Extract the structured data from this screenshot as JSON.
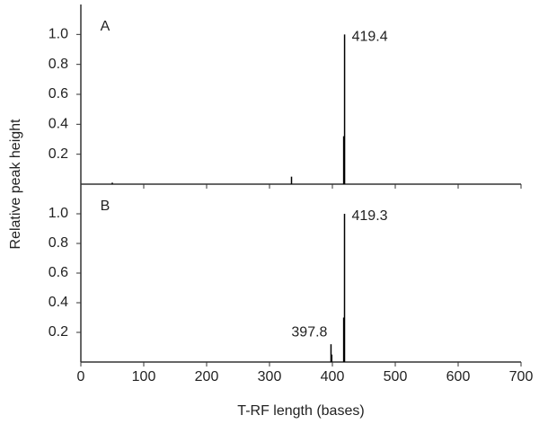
{
  "chart_data": [
    {
      "type": "stem",
      "label": "A",
      "color": "#000000",
      "x": [
        50,
        335,
        418,
        419.4
      ],
      "values": [
        0.01,
        0.05,
        0.32,
        1.0
      ],
      "annotations": [
        {
          "text": "419.4",
          "x": 419.4,
          "y": 1.0
        }
      ],
      "xlim": [
        0,
        700
      ],
      "xticks": [
        0,
        100,
        200,
        300,
        400,
        500,
        600,
        700
      ],
      "ylim": [
        0,
        1.2
      ],
      "yticks": [
        0.2,
        0.4,
        0.6,
        0.8,
        {
          "value": 1,
          "label": "1.0"
        }
      ]
    },
    {
      "type": "stem",
      "label": "B",
      "color": "#000000",
      "x": [
        397.8,
        399,
        418,
        419.3
      ],
      "values": [
        0.12,
        0.05,
        0.3,
        1.0
      ],
      "annotations": [
        {
          "text": "397.8",
          "x": 397.8,
          "y": 0.12
        },
        {
          "text": "419.3",
          "x": 419.3,
          "y": 1.0
        }
      ],
      "xlim": [
        0,
        700
      ],
      "xticks": [
        0,
        100,
        200,
        300,
        400,
        500,
        600,
        700
      ],
      "ylim": [
        0,
        1.2
      ],
      "yticks": [
        0.2,
        0.4,
        0.6,
        0.8,
        {
          "value": 1,
          "label": "1.0"
        }
      ],
      "xlabel": "T-RF length (bases)",
      "ylabel": "Relative peak height"
    }
  ]
}
